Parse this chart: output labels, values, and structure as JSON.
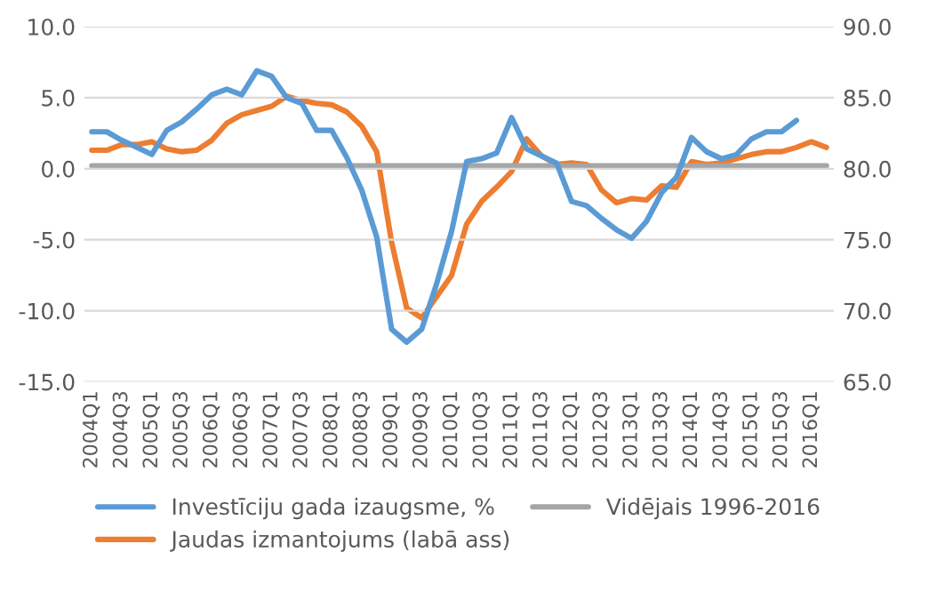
{
  "chart_data": {
    "type": "line",
    "categories": [
      "2004Q1",
      null,
      "2004Q3",
      null,
      "2005Q1",
      null,
      "2005Q3",
      null,
      "2006Q1",
      null,
      "2006Q3",
      null,
      "2007Q1",
      null,
      "2007Q3",
      null,
      "2008Q1",
      null,
      "2008Q3",
      null,
      "2009Q1",
      null,
      "2009Q3",
      null,
      "2010Q1",
      null,
      "2010Q3",
      null,
      "2011Q1",
      null,
      "2011Q3",
      null,
      "2012Q1",
      null,
      "2012Q3",
      null,
      "2013Q1",
      null,
      "2013Q3",
      null,
      "2014Q1",
      null,
      "2014Q3",
      null,
      "2015Q1",
      null,
      "2015Q3",
      null,
      "2016Q1",
      null
    ],
    "series": [
      {
        "name": "Investīciju gada izaugsme, %",
        "color": "#5b9bd5",
        "values": [
          2.6,
          2.6,
          2.0,
          1.5,
          1.0,
          2.7,
          3.3,
          4.2,
          5.2,
          5.6,
          5.2,
          6.9,
          6.5,
          5.0,
          4.6,
          2.7,
          2.7,
          0.8,
          -1.5,
          -4.8,
          -11.3,
          -12.2,
          -11.3,
          -8.1,
          -4.4,
          0.5,
          0.7,
          1.1,
          3.6,
          1.4,
          0.9,
          0.4,
          -2.3,
          -2.6,
          -3.5,
          -4.3,
          -4.9,
          -3.7,
          -1.7,
          -0.6,
          2.2,
          1.2,
          0.7,
          1.0,
          2.1,
          2.6,
          2.6,
          3.4,
          null,
          null
        ]
      },
      {
        "name": "Jaudas izmantojums (labā ass)",
        "color": "#ed7d31",
        "axis": "y2",
        "values": [
          81.3,
          81.3,
          81.7,
          81.7,
          81.9,
          81.4,
          81.2,
          81.3,
          82.0,
          83.2,
          83.8,
          84.1,
          84.4,
          85.1,
          84.8,
          84.6,
          84.5,
          84.0,
          83.0,
          81.2,
          74.8,
          70.2,
          69.5,
          71.0,
          72.5,
          76.1,
          77.7,
          78.7,
          79.8,
          82.1,
          80.9,
          80.3,
          80.4,
          80.3,
          78.5,
          77.6,
          77.9,
          77.8,
          78.8,
          78.7,
          80.5,
          80.3,
          80.4,
          80.7,
          81.0,
          81.2,
          81.2,
          81.5,
          81.9,
          81.5
        ]
      },
      {
        "name": "Vidējais 1996-2016",
        "color": "#a5a5a5",
        "axis": "y2",
        "values": [
          80.2,
          80.2,
          80.2,
          80.2,
          80.2,
          80.2,
          80.2,
          80.2,
          80.2,
          80.2,
          80.2,
          80.2,
          80.2,
          80.2,
          80.2,
          80.2,
          80.2,
          80.2,
          80.2,
          80.2,
          80.2,
          80.2,
          80.2,
          80.2,
          80.2,
          80.2,
          80.2,
          80.2,
          80.2,
          80.2,
          80.2,
          80.2,
          80.2,
          80.2,
          80.2,
          80.2,
          80.2,
          80.2,
          80.2,
          80.2,
          80.2,
          80.2,
          80.2,
          80.2,
          80.2,
          80.2,
          80.2,
          80.2,
          80.2,
          80.2
        ]
      }
    ],
    "ylim": [
      -15,
      10
    ],
    "yticks": [
      {
        "value": -15,
        "label": "-15.0"
      },
      {
        "value": -10,
        "label": "-10.0"
      },
      {
        "value": -5,
        "label": "-5.0"
      },
      {
        "value": 0,
        "label": "0.0"
      },
      {
        "value": 5,
        "label": "5.0"
      },
      {
        "value": 10,
        "label": "10.0"
      }
    ],
    "y2lim": [
      65,
      90
    ],
    "y2ticks": [
      {
        "value": 65,
        "label": "65.0"
      },
      {
        "value": 70,
        "label": "70.0"
      },
      {
        "value": 75,
        "label": "75.0"
      },
      {
        "value": 80,
        "label": "80.0"
      },
      {
        "value": 85,
        "label": "85.0"
      },
      {
        "value": 90,
        "label": "90.0"
      }
    ],
    "grid": "y",
    "legend": "bottom"
  }
}
